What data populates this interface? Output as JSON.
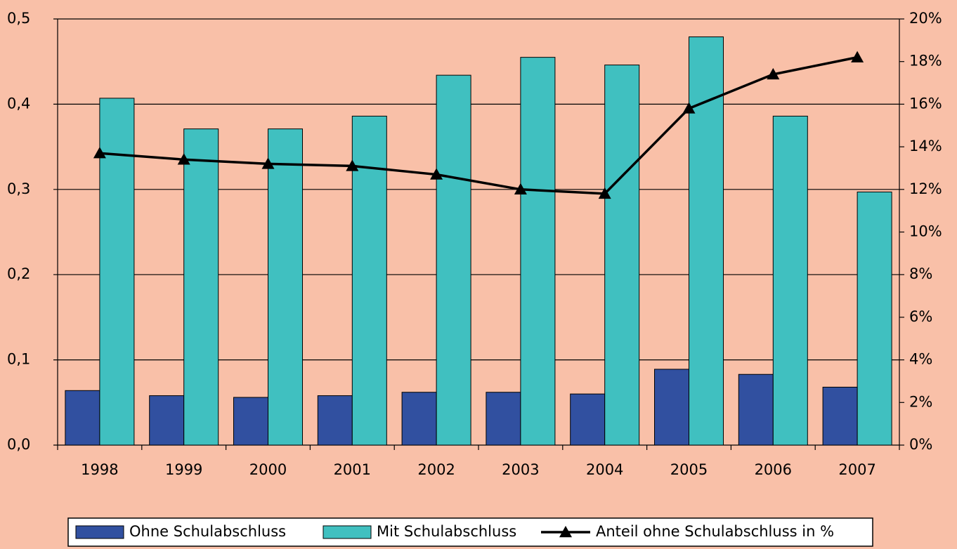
{
  "chart_data": {
    "type": "bar",
    "categories": [
      "1998",
      "1999",
      "2000",
      "2001",
      "2002",
      "2003",
      "2004",
      "2005",
      "2006",
      "2007"
    ],
    "series": [
      {
        "name": "Ohne Schulabschluss",
        "color": "#3150a0",
        "values": [
          0.064,
          0.058,
          0.056,
          0.058,
          0.062,
          0.062,
          0.06,
          0.089,
          0.083,
          0.068
        ]
      },
      {
        "name": "Mit Schulabschluss",
        "color": "#40c0c0",
        "values": [
          0.407,
          0.371,
          0.371,
          0.386,
          0.434,
          0.455,
          0.446,
          0.479,
          0.386,
          0.297
        ]
      },
      {
        "name": "Anteil ohne Schulabschluss in %",
        "color": "#000000",
        "type": "line",
        "axis": "y2",
        "values": [
          13.7,
          13.4,
          13.2,
          13.1,
          12.7,
          12.0,
          11.8,
          15.8,
          17.4,
          18.2
        ]
      }
    ],
    "ylim": [
      0,
      0.5
    ],
    "yticks": [
      {
        "value": 0,
        "label": "0,0"
      },
      {
        "value": 0.1,
        "label": "0,1"
      },
      {
        "value": 0.2,
        "label": "0,2"
      },
      {
        "value": 0.3,
        "label": "0,3"
      },
      {
        "value": 0.4,
        "label": "0,4"
      },
      {
        "value": 0.5,
        "label": "0,5"
      }
    ],
    "y2lim": [
      0,
      20
    ],
    "y2ticks": [
      {
        "value": 0,
        "label": "0%"
      },
      {
        "value": 2,
        "label": "2%"
      },
      {
        "value": 4,
        "label": "4%"
      },
      {
        "value": 6,
        "label": "6%"
      },
      {
        "value": 8,
        "label": "8%"
      },
      {
        "value": 10,
        "label": "10%"
      },
      {
        "value": 12,
        "label": "12%"
      },
      {
        "value": 14,
        "label": "14%"
      },
      {
        "value": 16,
        "label": "16%"
      },
      {
        "value": 18,
        "label": "18%"
      },
      {
        "value": 20,
        "label": "20%"
      }
    ],
    "grid": true,
    "legend": "bottom"
  }
}
